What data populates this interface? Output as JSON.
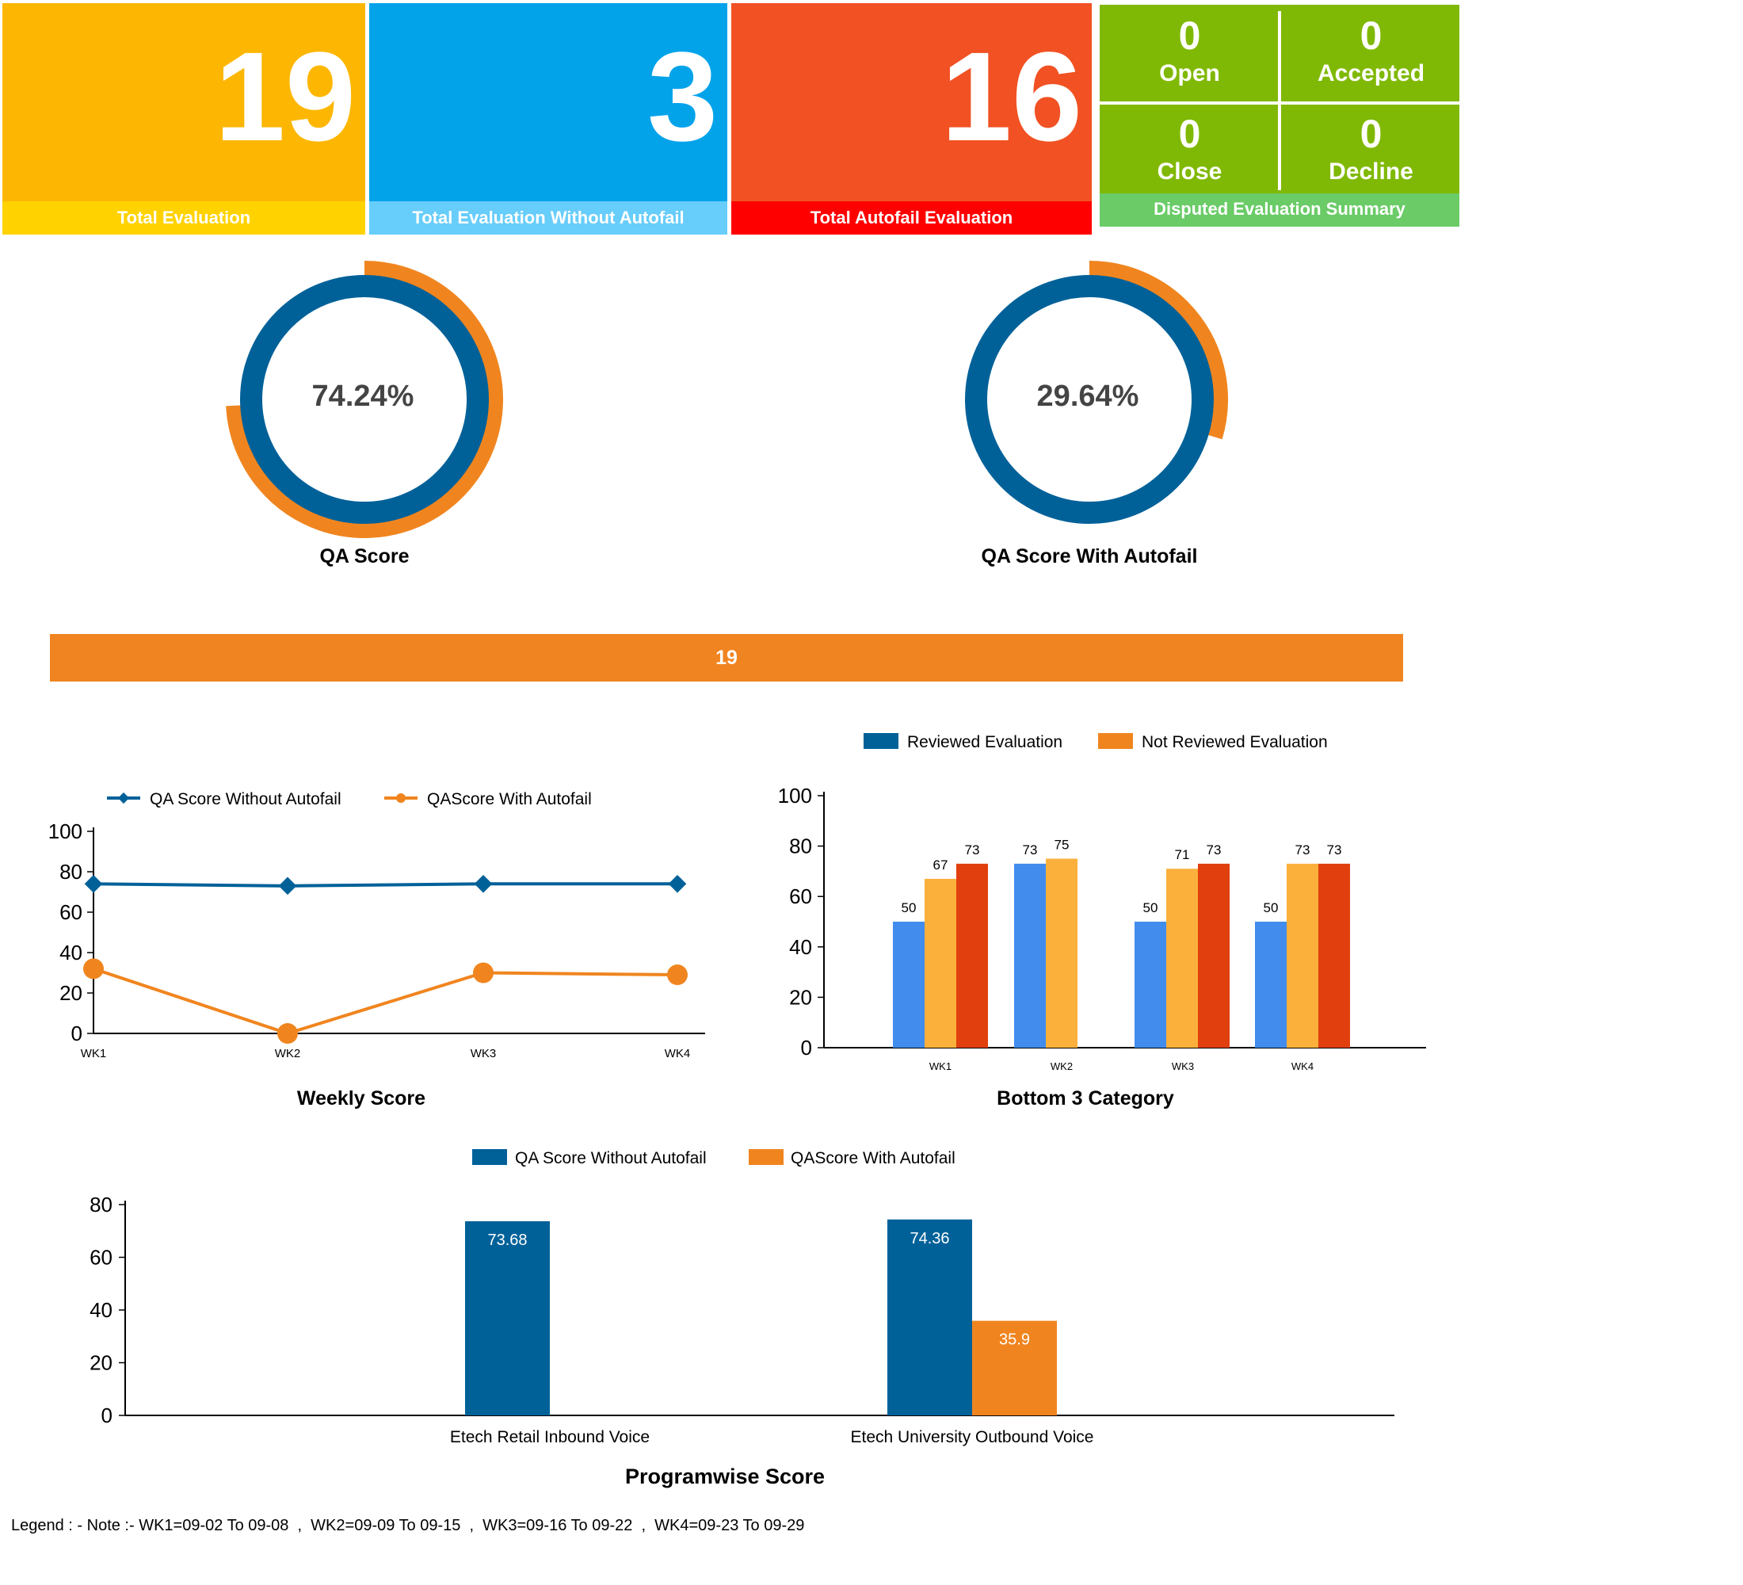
{
  "kpis": {
    "total_evaluation": {
      "value": "19",
      "label": "Total Evaluation"
    },
    "without_autofail": {
      "value": "3",
      "label": "Total Evaluation Without Autofail"
    },
    "autofail": {
      "value": "16",
      "label": "Total Autofail Evaluation"
    }
  },
  "disputed": {
    "open": {
      "value": "0",
      "label": "Open"
    },
    "accepted": {
      "value": "0",
      "label": "Accepted"
    },
    "close": {
      "value": "0",
      "label": "Close"
    },
    "decline": {
      "value": "0",
      "label": "Decline"
    },
    "label": "Disputed Evaluation Summary"
  },
  "colors": {
    "yellow": "#fdb703",
    "yellow_label": "#ffd200",
    "blue": "#03a3ea",
    "blue_label": "#67cdfb",
    "red": "#f15123",
    "red_label": "#ff0000",
    "green": "#80b905",
    "green_label": "#6acb67",
    "series_blue": "#006199",
    "series_orange": "#f0851f"
  },
  "gauges": [
    {
      "text": "74.24%",
      "title": "QA Score",
      "value": 74.24
    },
    {
      "text": "29.64%",
      "title": "QA Score With Autofail",
      "value": 29.64
    }
  ],
  "banner": "19",
  "chart_data": [
    {
      "type": "line",
      "title": "Weekly Score",
      "categories": [
        "WK1",
        "WK2",
        "WK3",
        "WK4"
      ],
      "ylim": [
        0,
        100
      ],
      "yticks": [
        "0",
        "20",
        "40",
        "60",
        "80",
        "100"
      ],
      "legend": "top",
      "series": [
        {
          "name": "QA Score Without Autofail",
          "values": [
            74,
            73,
            74,
            74
          ]
        },
        {
          "name": "QAScore With Autofail",
          "values": [
            32,
            0,
            30,
            29
          ]
        }
      ]
    },
    {
      "type": "bar",
      "title": "Bottom 3 Category",
      "categories": [
        "WK1",
        "WK2",
        "WK3",
        "WK4"
      ],
      "ylim": [
        0,
        100
      ],
      "yticks": [
        "0",
        "20",
        "40",
        "60",
        "80",
        "100"
      ],
      "legend": "top",
      "legend_entries": [
        "Reviewed Evaluation",
        "Not Reviewed Evaluation"
      ],
      "bar_colors": [
        "#418ced",
        "#fbb03c",
        "#e13f0e"
      ],
      "groups": [
        [
          50,
          67,
          73
        ],
        [
          73,
          75
        ],
        [
          50,
          71,
          73
        ],
        [
          50,
          73,
          73
        ]
      ]
    },
    {
      "type": "bar",
      "title": "Programwise Score",
      "categories": [
        "Etech Retail Inbound Voice",
        "Etech University Outbound Voice"
      ],
      "ylim": [
        0,
        80
      ],
      "yticks": [
        "0",
        "20",
        "40",
        "60",
        "80"
      ],
      "legend": "top",
      "series": [
        {
          "name": "QA Score Without Autofail",
          "values": [
            73.68,
            74.36
          ]
        },
        {
          "name": "QAScore With Autofail",
          "values": [
            null,
            35.9
          ]
        }
      ]
    }
  ],
  "note": "Legend : - Note :- WK1=09-02 To 09-08  ,  WK2=09-09 To 09-15  ,  WK3=09-16 To 09-22  ,  WK4=09-23 To 09-29"
}
